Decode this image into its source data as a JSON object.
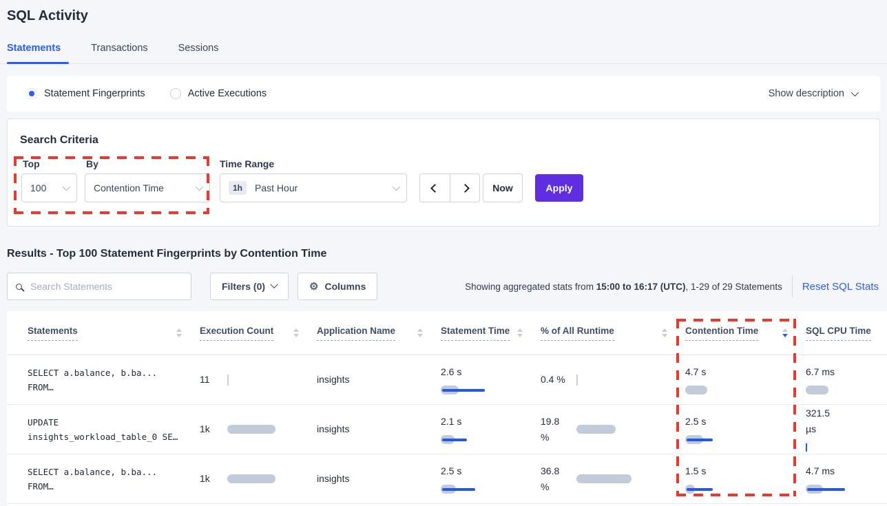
{
  "page": {
    "title": "SQL Activity"
  },
  "tabs": [
    {
      "label": "Statements",
      "active": true
    },
    {
      "label": "Transactions",
      "active": false
    },
    {
      "label": "Sessions",
      "active": false
    }
  ],
  "view_toggle": {
    "options": [
      {
        "label": "Statement Fingerprints",
        "selected": true
      },
      {
        "label": "Active Executions",
        "selected": false
      }
    ],
    "show_description": "Show description"
  },
  "search_criteria": {
    "heading": "Search Criteria",
    "top": {
      "label": "Top",
      "value": "100"
    },
    "by": {
      "label": "By",
      "value": "Contention Time"
    },
    "time_range": {
      "label": "Time Range",
      "badge": "1h",
      "value": "Past Hour"
    },
    "now_label": "Now",
    "apply_label": "Apply"
  },
  "results": {
    "heading": "Results - Top 100 Statement Fingerprints by Contention Time",
    "search_placeholder": "Search Statements",
    "filters_label": "Filters (0)",
    "columns_label": "Columns",
    "stats_prefix": "Showing aggregated stats from ",
    "stats_bold": "15:00 to 16:17 (UTC)",
    "stats_suffix": ", 1-29 of 29 Statements",
    "reset_label": "Reset SQL Stats"
  },
  "icons": {
    "gear_glyph": "⚙"
  },
  "table": {
    "columns": [
      "Statements",
      "Execution Count",
      "Application Name",
      "Statement Time",
      "% of All Runtime",
      "Contention Time",
      "SQL CPU Time"
    ],
    "sorted_column": "Contention Time",
    "sort_direction": "desc",
    "rows": [
      {
        "statement": [
          "SELECT a.balance, b.ba...",
          "FROM…"
        ],
        "exec": {
          "text": "11",
          "bar": {
            "tick": "gray"
          }
        },
        "app": "insights",
        "stmt_time": {
          "lines": [
            "2.6 s"
          ],
          "bar": {
            "gray": 26,
            "blue": 62
          }
        },
        "runtime": {
          "lines": [
            "0.4 %"
          ],
          "bar": {
            "tick": "gray"
          }
        },
        "contention": {
          "lines": [
            "4.7 s"
          ],
          "bar": {
            "gray": 32
          }
        },
        "cpu": {
          "lines": [
            "6.7 ms"
          ],
          "bar": {
            "gray": 33
          }
        }
      },
      {
        "statement": [
          "UPDATE",
          "insights_workload_table_0 SE…"
        ],
        "exec": {
          "text": "1k",
          "bar": {
            "gray": 70
          }
        },
        "app": "insights",
        "stmt_time": {
          "lines": [
            "2.1 s"
          ],
          "bar": {
            "gray": 20,
            "blue": 36
          }
        },
        "runtime": {
          "lines": [
            "19.8",
            "%"
          ],
          "bar": {
            "gray": 57
          }
        },
        "contention": {
          "lines": [
            "2.5 s"
          ],
          "bar": {
            "gray": 26,
            "blue": 38
          }
        },
        "cpu": {
          "lines": [
            "321.5",
            "µs"
          ],
          "bar": {
            "tick": "blue"
          }
        }
      },
      {
        "statement": [
          "SELECT a.balance, b.ba...",
          "FROM…"
        ],
        "exec": {
          "text": "1k",
          "bar": {
            "gray": 70
          }
        },
        "app": "insights",
        "stmt_time": {
          "lines": [
            "2.5 s"
          ],
          "bar": {
            "gray": 22,
            "blue": 48
          }
        },
        "runtime": {
          "lines": [
            "36.8",
            "%"
          ],
          "bar": {
            "gray": 80
          }
        },
        "contention": {
          "lines": [
            "1.5 s"
          ],
          "bar": {
            "gray": 14,
            "blue": 38
          }
        },
        "cpu": {
          "lines": [
            "4.7 ms"
          ],
          "bar": {
            "gray": 25,
            "blue": 55
          }
        }
      }
    ]
  },
  "colors": {
    "accent_blue": "#2a5cf7",
    "apply_purple": "#5f2ee0",
    "highlight_red": "#ee372b",
    "bar_gray": "#c3cad9",
    "bar_blue": "#2158f0"
  }
}
